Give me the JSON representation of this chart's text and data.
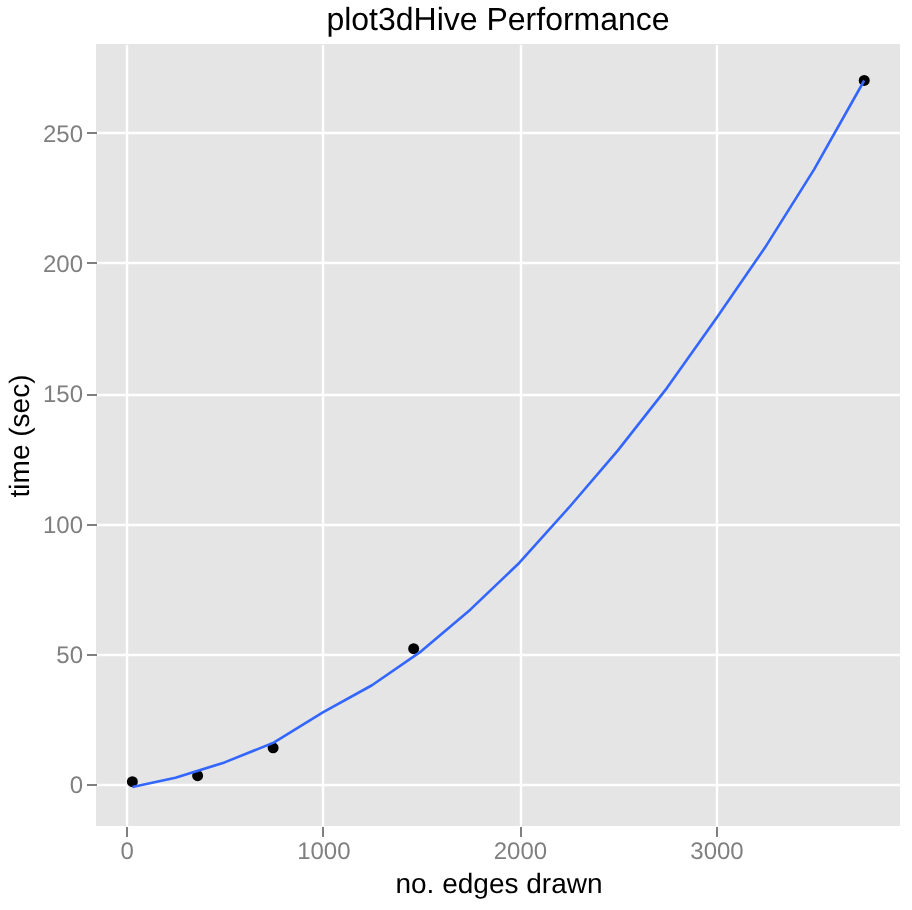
{
  "chart_data": {
    "type": "scatter",
    "title": "plot3dHive Performance",
    "xlabel": "no. edges drawn",
    "ylabel": "time (sec)",
    "xlim": [
      -154,
      3936
    ],
    "xticks": [
      0,
      1000,
      2000,
      3000
    ],
    "ylim": [
      -16,
      284
    ],
    "yticks": [
      0,
      50,
      100,
      150,
      200,
      250
    ],
    "grid": true,
    "series": [
      {
        "color": "#000000",
        "marker": "circle",
        "x": [
          31,
          363,
          747,
          1462,
          3754
        ],
        "values": [
          1,
          3.3,
          14,
          52,
          270
        ]
      },
      {
        "type": "line",
        "color": "#3366ff",
        "line_style": "solid",
        "marker": "none",
        "x": [
          31,
          250,
          500,
          750,
          1000,
          1250,
          1500,
          1750,
          2000,
          2250,
          2500,
          2750,
          3000,
          3250,
          3500,
          3754
        ],
        "values": [
          -1,
          2.5,
          8.4,
          16,
          27.6,
          38,
          51,
          67,
          85,
          106,
          128,
          152,
          178.6,
          206,
          236,
          270
        ]
      }
    ]
  }
}
